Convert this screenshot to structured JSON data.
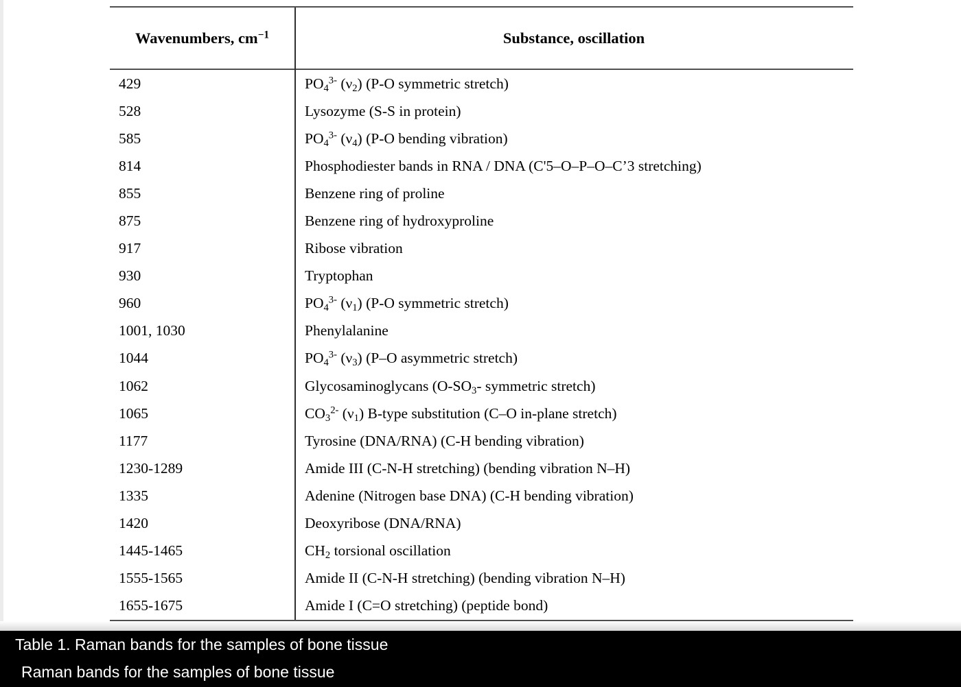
{
  "colors": {
    "page_background": "#ffffff",
    "table_border": "#4f4f4f",
    "column_divider": "#2e2e2e",
    "text": "#000000",
    "caption_background": "#000000",
    "caption_text": "#ffffff"
  },
  "table": {
    "headers": [
      "Wavenumbers, cm^−1^",
      "Substance, oscillation"
    ],
    "rows": [
      [
        "429",
        "PO~4~^3-^ (ν~2~) (P-O symmetric stretch)"
      ],
      [
        "528",
        "Lysozyme (S-S in protein)"
      ],
      [
        "585",
        "PO~4~^3-^ (ν~4~) (P-O bending vibration)"
      ],
      [
        "814",
        "Phosphodiester bands in RNA / DNA (C'5–O–P–O–C’3 stretching)"
      ],
      [
        "855",
        "Benzene ring of proline"
      ],
      [
        "875",
        "Benzene ring of hydroxyproline"
      ],
      [
        "917",
        "Ribose vibration"
      ],
      [
        "930",
        "Tryptophan"
      ],
      [
        "960",
        "PO~4~^3-^ (ν~1~) (P-O symmetric stretch)"
      ],
      [
        "1001, 1030",
        "Phenylalanine"
      ],
      [
        "1044",
        "PO~4~^3-^ (ν~3~) (P–O asymmetric stretch)"
      ],
      [
        "1062",
        "Glycosaminoglycans (O-SO~3~- symmetric stretch)"
      ],
      [
        "1065",
        "CO~3~^2-^ (ν~1~) B-type substitution (C–O in-plane stretch)"
      ],
      [
        "1177",
        "Tyrosine (DNA/RNA) (C-H bending vibration)"
      ],
      [
        "1230-1289",
        "Amide III (C-N-H stretching) (bending vibration N–H)"
      ],
      [
        "1335",
        "Adenine (Nitrogen base DNA) (C-H bending vibration)"
      ],
      [
        "1420",
        "Deoxyribose (DNA/RNA)"
      ],
      [
        "1445-1465",
        "CH~2~ torsional oscillation"
      ],
      [
        "1555-1565",
        "Amide II (C-N-H stretching) (bending vibration N–H)"
      ],
      [
        "1655-1675",
        "Amide I (C=O stretching) (peptide bond)"
      ]
    ]
  },
  "caption_bar": {
    "line1": "Table 1. Raman bands for the samples of bone tissue",
    "line2": "Raman bands for the samples of bone tissue"
  }
}
